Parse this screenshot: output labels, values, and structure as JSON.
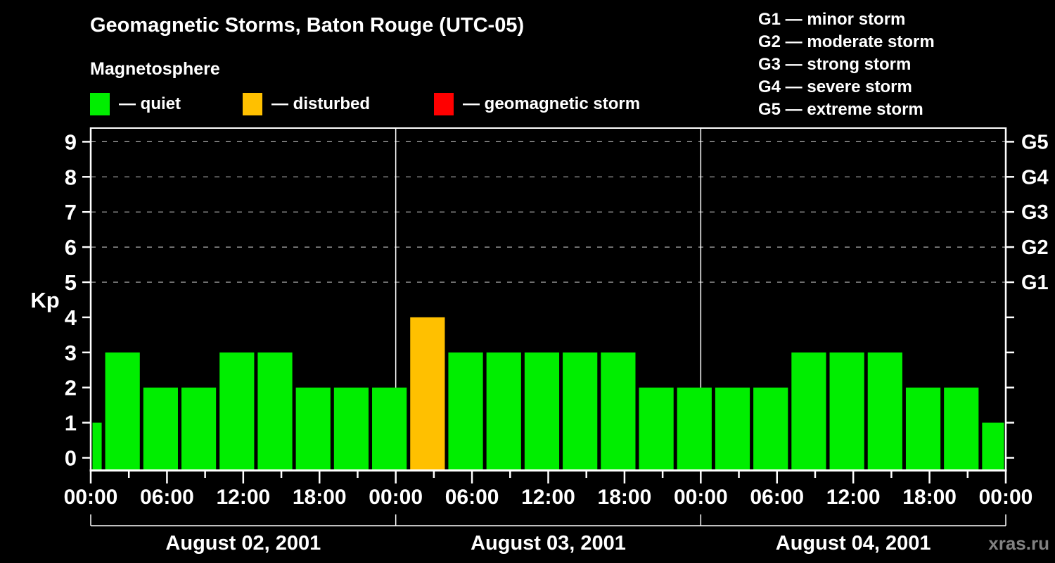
{
  "title": "Geomagnetic Storms, Baton Rouge (UTC-05)",
  "subtitle": "Magnetosphere",
  "legend": {
    "items": [
      {
        "key": "quiet",
        "label": "— quiet",
        "color": "#00EE00"
      },
      {
        "key": "disturbed",
        "label": "— disturbed",
        "color": "#FFC000"
      },
      {
        "key": "storm",
        "label": "— geomagnetic storm",
        "color": "#FF0000"
      }
    ]
  },
  "storm_scale_legend": [
    "G1 — minor storm",
    "G2 — moderate storm",
    "G3 — strong storm",
    "G4 — severe storm",
    "G5 — extreme storm"
  ],
  "watermark": "xras.ru",
  "chart_data": {
    "type": "bar",
    "title": "Geomagnetic Storms, Baton Rouge (UTC-05)",
    "ylabel": "Kp",
    "ylim": [
      0,
      9
    ],
    "yticks": [
      "0",
      "1",
      "2",
      "3",
      "4",
      "5",
      "6",
      "7",
      "8",
      "9"
    ],
    "gridlines_kp": [
      5,
      6,
      7,
      8,
      9
    ],
    "grid_style": "dashed",
    "legend_position": "top",
    "right_axis_labels": [
      {
        "label": "G5",
        "kp": 9
      },
      {
        "label": "G4",
        "kp": 8
      },
      {
        "label": "G3",
        "kp": 7
      },
      {
        "label": "G2",
        "kp": 6
      },
      {
        "label": "G1",
        "kp": 5
      }
    ],
    "colors": {
      "quiet": "#00EE00",
      "disturbed": "#FFC000",
      "storm": "#FF0000"
    },
    "x_axis": {
      "range_hours": [
        0,
        72
      ],
      "major_tick_hours": 6,
      "minor_tick_hours": 3,
      "ticks": [
        {
          "hour": 0,
          "label": "00:00"
        },
        {
          "hour": 6,
          "label": "06:00"
        },
        {
          "hour": 12,
          "label": "12:00"
        },
        {
          "hour": 18,
          "label": "18:00"
        },
        {
          "hour": 24,
          "label": "00:00"
        },
        {
          "hour": 30,
          "label": "06:00"
        },
        {
          "hour": 36,
          "label": "12:00"
        },
        {
          "hour": 42,
          "label": "18:00"
        },
        {
          "hour": 48,
          "label": "00:00"
        },
        {
          "hour": 54,
          "label": "06:00"
        },
        {
          "hour": 60,
          "label": "12:00"
        },
        {
          "hour": 66,
          "label": "18:00"
        },
        {
          "hour": 72,
          "label": "00:00"
        }
      ]
    },
    "day_separator_hours": [
      24,
      48
    ],
    "days": [
      {
        "label": "August 02, 2001",
        "start_hour": 0,
        "end_hour": 24
      },
      {
        "label": "August 03, 2001",
        "start_hour": 24,
        "end_hour": 48
      },
      {
        "label": "August 04, 2001",
        "start_hour": 48,
        "end_hour": 72
      }
    ],
    "bars": [
      {
        "start_hour": 0,
        "end_hour": 1,
        "kp": 1,
        "status": "quiet"
      },
      {
        "start_hour": 1,
        "end_hour": 4,
        "kp": 3,
        "status": "quiet"
      },
      {
        "start_hour": 4,
        "end_hour": 7,
        "kp": 2,
        "status": "quiet"
      },
      {
        "start_hour": 7,
        "end_hour": 10,
        "kp": 2,
        "status": "quiet"
      },
      {
        "start_hour": 10,
        "end_hour": 13,
        "kp": 3,
        "status": "quiet"
      },
      {
        "start_hour": 13,
        "end_hour": 16,
        "kp": 3,
        "status": "quiet"
      },
      {
        "start_hour": 16,
        "end_hour": 19,
        "kp": 2,
        "status": "quiet"
      },
      {
        "start_hour": 19,
        "end_hour": 22,
        "kp": 2,
        "status": "quiet"
      },
      {
        "start_hour": 22,
        "end_hour": 25,
        "kp": 2,
        "status": "quiet"
      },
      {
        "start_hour": 25,
        "end_hour": 28,
        "kp": 4,
        "status": "disturbed"
      },
      {
        "start_hour": 28,
        "end_hour": 31,
        "kp": 3,
        "status": "quiet"
      },
      {
        "start_hour": 31,
        "end_hour": 34,
        "kp": 3,
        "status": "quiet"
      },
      {
        "start_hour": 34,
        "end_hour": 37,
        "kp": 3,
        "status": "quiet"
      },
      {
        "start_hour": 37,
        "end_hour": 40,
        "kp": 3,
        "status": "quiet"
      },
      {
        "start_hour": 40,
        "end_hour": 43,
        "kp": 3,
        "status": "quiet"
      },
      {
        "start_hour": 43,
        "end_hour": 46,
        "kp": 2,
        "status": "quiet"
      },
      {
        "start_hour": 46,
        "end_hour": 49,
        "kp": 2,
        "status": "quiet"
      },
      {
        "start_hour": 49,
        "end_hour": 52,
        "kp": 2,
        "status": "quiet"
      },
      {
        "start_hour": 52,
        "end_hour": 55,
        "kp": 2,
        "status": "quiet"
      },
      {
        "start_hour": 55,
        "end_hour": 58,
        "kp": 3,
        "status": "quiet"
      },
      {
        "start_hour": 58,
        "end_hour": 61,
        "kp": 3,
        "status": "quiet"
      },
      {
        "start_hour": 61,
        "end_hour": 64,
        "kp": 3,
        "status": "quiet"
      },
      {
        "start_hour": 64,
        "end_hour": 67,
        "kp": 2,
        "status": "quiet"
      },
      {
        "start_hour": 67,
        "end_hour": 70,
        "kp": 2,
        "status": "quiet"
      },
      {
        "start_hour": 70,
        "end_hour": 72,
        "kp": 1,
        "status": "quiet"
      }
    ]
  }
}
